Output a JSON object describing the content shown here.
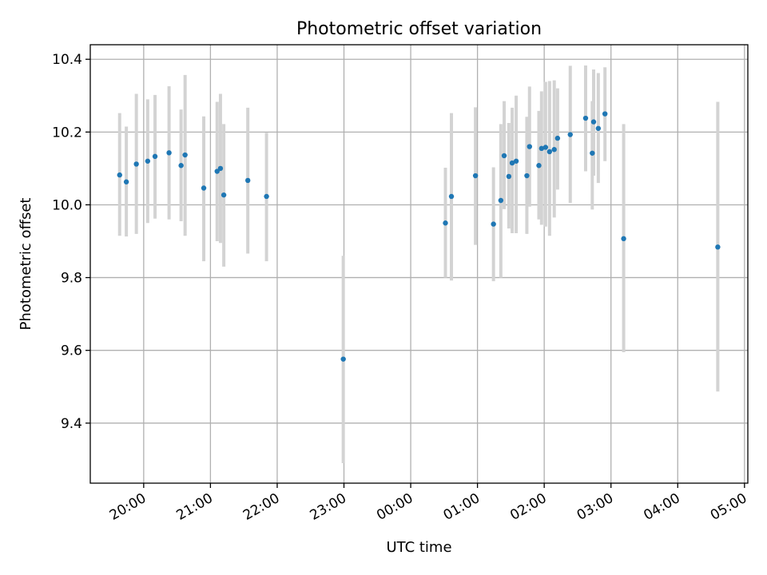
{
  "chart_data": {
    "type": "scatter",
    "title": "Photometric offset variation",
    "xlabel": "UTC time",
    "ylabel": "Photometric offset",
    "x_unit": "UTC clock time (hours past midnight of first night; >24 = next day)",
    "xlim": [
      19.2,
      29.05
    ],
    "ylim": [
      9.235,
      10.44
    ],
    "x_ticks": [
      {
        "x": 20,
        "label": "20:00"
      },
      {
        "x": 21,
        "label": "21:00"
      },
      {
        "x": 22,
        "label": "22:00"
      },
      {
        "x": 23,
        "label": "23:00"
      },
      {
        "x": 24,
        "label": "00:00"
      },
      {
        "x": 25,
        "label": "01:00"
      },
      {
        "x": 26,
        "label": "02:00"
      },
      {
        "x": 27,
        "label": "03:00"
      },
      {
        "x": 28,
        "label": "04:00"
      },
      {
        "x": 29,
        "label": "05:00"
      }
    ],
    "y_ticks": [
      {
        "y": 9.4,
        "label": "9.4"
      },
      {
        "y": 9.6,
        "label": "9.6"
      },
      {
        "y": 9.8,
        "label": "9.8"
      },
      {
        "y": 10.0,
        "label": "10.0"
      },
      {
        "y": 10.2,
        "label": "10.2"
      },
      {
        "y": 10.4,
        "label": "10.4"
      }
    ],
    "grid": true,
    "marker_color": "#1f77b4",
    "errorbar_color": "#d3d3d3",
    "points": [
      {
        "x": 19.64,
        "y": 10.082,
        "lo": 9.915,
        "hi": 10.252
      },
      {
        "x": 19.74,
        "y": 10.063,
        "lo": 9.913,
        "hi": 10.215
      },
      {
        "x": 19.89,
        "y": 10.112,
        "lo": 9.92,
        "hi": 10.305
      },
      {
        "x": 20.06,
        "y": 10.12,
        "lo": 9.95,
        "hi": 10.29
      },
      {
        "x": 20.17,
        "y": 10.133,
        "lo": 9.962,
        "hi": 10.302
      },
      {
        "x": 20.38,
        "y": 10.143,
        "lo": 9.96,
        "hi": 10.326
      },
      {
        "x": 20.56,
        "y": 10.108,
        "lo": 9.955,
        "hi": 10.262
      },
      {
        "x": 20.62,
        "y": 10.137,
        "lo": 9.915,
        "hi": 10.357
      },
      {
        "x": 20.9,
        "y": 10.046,
        "lo": 9.845,
        "hi": 10.243
      },
      {
        "x": 21.1,
        "y": 10.092,
        "lo": 9.9,
        "hi": 10.283
      },
      {
        "x": 21.15,
        "y": 10.1,
        "lo": 9.895,
        "hi": 10.305
      },
      {
        "x": 21.2,
        "y": 10.027,
        "lo": 9.83,
        "hi": 10.222
      },
      {
        "x": 21.56,
        "y": 10.067,
        "lo": 9.866,
        "hi": 10.267
      },
      {
        "x": 21.84,
        "y": 10.023,
        "lo": 9.845,
        "hi": 10.198
      },
      {
        "x": 22.99,
        "y": 9.576,
        "lo": 9.29,
        "hi": 9.86
      },
      {
        "x": 24.52,
        "y": 9.95,
        "lo": 9.8,
        "hi": 10.102
      },
      {
        "x": 24.61,
        "y": 10.023,
        "lo": 9.792,
        "hi": 10.252
      },
      {
        "x": 24.97,
        "y": 10.08,
        "lo": 9.89,
        "hi": 10.268
      },
      {
        "x": 25.24,
        "y": 9.947,
        "lo": 9.79,
        "hi": 10.103
      },
      {
        "x": 25.35,
        "y": 10.012,
        "lo": 9.8,
        "hi": 10.222
      },
      {
        "x": 25.4,
        "y": 10.135,
        "lo": 9.988,
        "hi": 10.285
      },
      {
        "x": 25.47,
        "y": 10.078,
        "lo": 9.935,
        "hi": 10.225
      },
      {
        "x": 25.52,
        "y": 10.115,
        "lo": 9.922,
        "hi": 10.267
      },
      {
        "x": 25.58,
        "y": 10.12,
        "lo": 9.922,
        "hi": 10.3
      },
      {
        "x": 25.74,
        "y": 10.08,
        "lo": 9.92,
        "hi": 10.242
      },
      {
        "x": 25.78,
        "y": 10.16,
        "lo": 9.995,
        "hi": 10.325
      },
      {
        "x": 25.92,
        "y": 10.108,
        "lo": 9.96,
        "hi": 10.258
      },
      {
        "x": 25.96,
        "y": 10.155,
        "lo": 9.945,
        "hi": 10.312
      },
      {
        "x": 26.02,
        "y": 10.158,
        "lo": 9.94,
        "hi": 10.338
      },
      {
        "x": 26.08,
        "y": 10.146,
        "lo": 9.915,
        "hi": 10.34
      },
      {
        "x": 26.15,
        "y": 10.152,
        "lo": 9.965,
        "hi": 10.342
      },
      {
        "x": 26.2,
        "y": 10.183,
        "lo": 10.042,
        "hi": 10.32
      },
      {
        "x": 26.39,
        "y": 10.193,
        "lo": 10.005,
        "hi": 10.382
      },
      {
        "x": 26.62,
        "y": 10.238,
        "lo": 10.092,
        "hi": 10.383
      },
      {
        "x": 26.72,
        "y": 10.142,
        "lo": 9.987,
        "hi": 10.285
      },
      {
        "x": 26.74,
        "y": 10.228,
        "lo": 10.08,
        "hi": 10.372
      },
      {
        "x": 26.81,
        "y": 10.21,
        "lo": 10.06,
        "hi": 10.362
      },
      {
        "x": 26.91,
        "y": 10.25,
        "lo": 10.12,
        "hi": 10.378
      },
      {
        "x": 27.19,
        "y": 9.907,
        "lo": 9.595,
        "hi": 10.222
      },
      {
        "x": 28.6,
        "y": 9.884,
        "lo": 9.487,
        "hi": 10.283
      }
    ]
  }
}
